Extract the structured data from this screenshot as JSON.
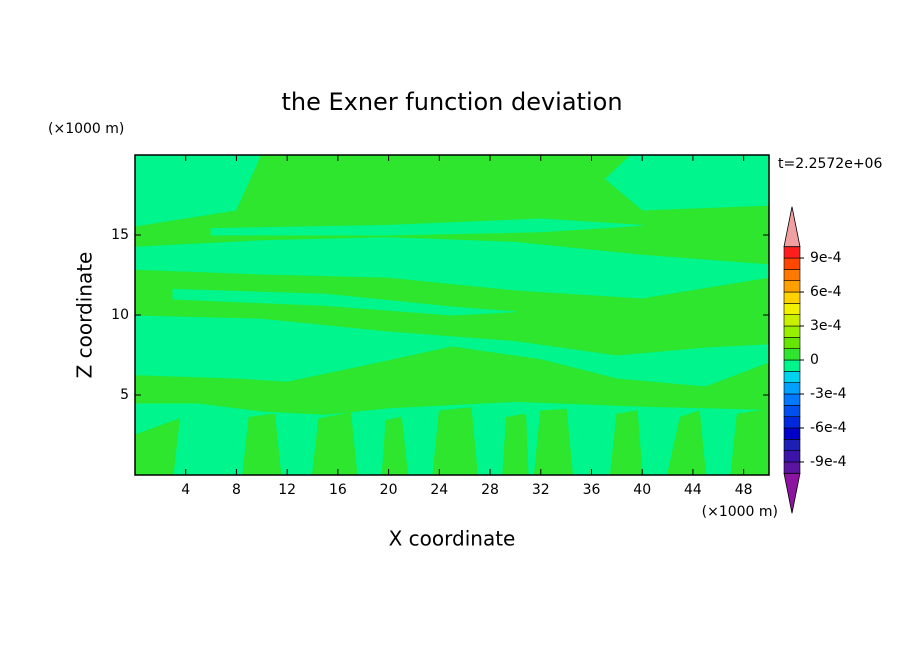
{
  "chart_data": {
    "type": "contour",
    "title": "the Exner function deviation",
    "xlabel": "X coordinate",
    "ylabel": "Z coordinate",
    "x_unit": "(×1000 m)",
    "y_unit": "(×1000 m)",
    "time_label": "t=2.2572e+06",
    "xlim": [
      0,
      50
    ],
    "ylim": [
      0,
      20
    ],
    "xticks": [
      4,
      8,
      12,
      16,
      20,
      24,
      28,
      32,
      36,
      40,
      44,
      48
    ],
    "yticks": [
      5,
      10,
      15
    ],
    "levels": [
      -0.001,
      -0.0009,
      -0.0008,
      -0.0007,
      -0.0006,
      -0.0005,
      -0.0004,
      -0.0003,
      -0.0002,
      -0.0001,
      0,
      0.0001,
      0.0002,
      0.0003,
      0.0004,
      0.0005,
      0.0006,
      0.0007,
      0.0008,
      0.0009,
      0.001
    ],
    "colors": [
      "#5a14a0",
      "#3c14aa",
      "#1e1eb4",
      "#0000c8",
      "#0028dc",
      "#0050f0",
      "#0078ff",
      "#00a0ff",
      "#00d2f0",
      "#00f58c",
      "#2de62d",
      "#64e600",
      "#96f000",
      "#c8f000",
      "#f0f000",
      "#ffd200",
      "#ffa000",
      "#ff7800",
      "#ff4600",
      "#ff1e1e"
    ],
    "under_color": "#8c14a0",
    "over_color": "#f0a0a0",
    "colorbar_ticks": [
      {
        "value": 0.0009,
        "label": "9e-4"
      },
      {
        "value": 0.0006,
        "label": "6e-4"
      },
      {
        "value": 0.0003,
        "label": "3e-4"
      },
      0,
      {
        "value": -0.0003,
        "label": "-3e-4"
      },
      {
        "value": -0.0006,
        "label": "-6e-4"
      },
      {
        "value": -0.0009,
        "label": "-9e-4"
      }
    ],
    "background_level": -0.0001,
    "regions": [
      {
        "level": 0,
        "x": [
          0,
          8,
          10,
          39,
          37,
          40,
          50,
          50,
          40,
          30,
          20,
          10,
          0
        ],
        "z": [
          15.5,
          16.5,
          20,
          20,
          18.5,
          16.5,
          16.8,
          13.2,
          13.8,
          14.6,
          14.9,
          14.7,
          14.3
        ]
      },
      {
        "level": -0.0001,
        "x": [
          6,
          20,
          32,
          40,
          32,
          20,
          6
        ],
        "z": [
          15.4,
          15.6,
          16.0,
          15.6,
          15.2,
          15.0,
          15.0
        ]
      },
      {
        "level": 0,
        "x": [
          0,
          10,
          20,
          30,
          40,
          50,
          50,
          45,
          38,
          30,
          20,
          10,
          0
        ],
        "z": [
          12.8,
          12.5,
          12.3,
          11.5,
          11.0,
          12.3,
          8.2,
          8.0,
          7.5,
          8.4,
          9.0,
          9.8,
          10.0
        ]
      },
      {
        "level": -0.0001,
        "x": [
          3,
          15,
          25,
          30,
          25,
          15,
          3
        ],
        "z": [
          11.6,
          11.3,
          10.5,
          10.2,
          10.0,
          10.6,
          11.0
        ]
      },
      {
        "level": 0,
        "x": [
          0,
          8,
          12,
          18,
          25,
          32,
          38,
          45,
          50,
          50,
          45,
          40,
          30,
          20,
          15,
          10,
          5,
          0
        ],
        "z": [
          6.2,
          6.0,
          5.8,
          6.8,
          8.0,
          7.2,
          6.0,
          5.5,
          7.0,
          4.1,
          4.2,
          4.3,
          4.6,
          4.2,
          3.8,
          4.0,
          4.5,
          4.5
        ]
      },
      {
        "level": 0,
        "x": [
          0,
          3,
          3.5,
          0
        ],
        "z": [
          0,
          0,
          3.5,
          2.5
        ]
      },
      {
        "level": 0,
        "x": [
          8.5,
          11.5,
          11,
          9
        ],
        "z": [
          0,
          0,
          3.8,
          3.6
        ]
      },
      {
        "level": 0,
        "x": [
          14,
          17.5,
          17,
          14.5
        ],
        "z": [
          0,
          0,
          3.9,
          3.5
        ]
      },
      {
        "level": 0,
        "x": [
          19.5,
          21.5,
          21,
          19.8
        ],
        "z": [
          0,
          0,
          3.6,
          3.4
        ]
      },
      {
        "level": 0,
        "x": [
          23.5,
          27,
          26.5,
          24
        ],
        "z": [
          0,
          0,
          4.2,
          4.0
        ]
      },
      {
        "level": 0,
        "x": [
          29,
          31,
          30.8,
          29.3
        ],
        "z": [
          0,
          0,
          3.8,
          3.6
        ]
      },
      {
        "level": 0,
        "x": [
          31.5,
          34.5,
          34,
          32
        ],
        "z": [
          0,
          0,
          4.1,
          4.0
        ]
      },
      {
        "level": 0,
        "x": [
          37.5,
          40,
          39.6,
          38
        ],
        "z": [
          0,
          0,
          4.0,
          3.8
        ]
      },
      {
        "level": 0,
        "x": [
          42,
          45,
          44.5,
          43
        ],
        "z": [
          0,
          0,
          4.0,
          3.6
        ]
      },
      {
        "level": 0,
        "x": [
          47,
          50,
          50,
          47.5
        ],
        "z": [
          0,
          0,
          4.1,
          3.8
        ]
      }
    ]
  }
}
